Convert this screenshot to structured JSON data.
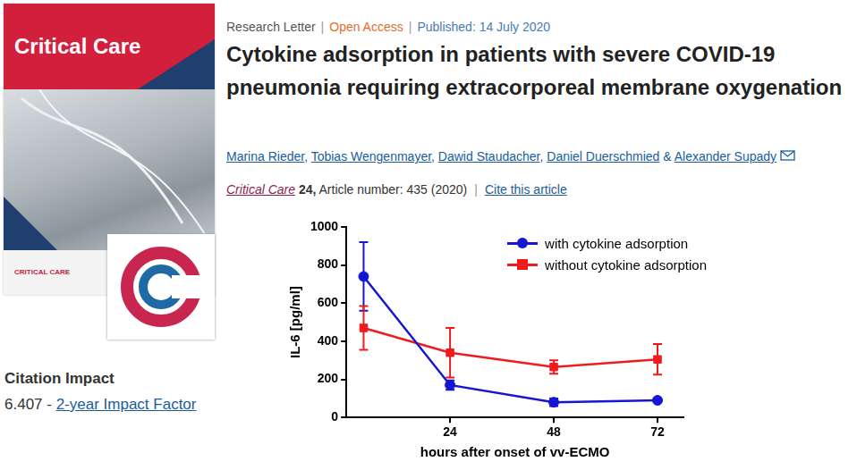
{
  "cover": {
    "title": "Critical Care",
    "footer": "CRITICAL CARE"
  },
  "article": {
    "type_label": "Research Letter",
    "access": "Open Access",
    "published": "Published: 14 July 2020",
    "separator": "|",
    "title": "Cytokine adsorption in patients with severe COVID-19 pneumonia requiring extracorporeal membrane oxygenation",
    "authors": [
      "Marina Rieder",
      "Tobias Wengenmayer",
      "Dawid Staudacher",
      "Daniel Duerschmied",
      "Alexander Supady"
    ],
    "author_separator": ", ",
    "last_author_separator": " & ",
    "journal": "Critical Care",
    "volume": "24,",
    "article_number": "Article number: 435 (2020)",
    "cite": "Cite this article"
  },
  "citation_impact": {
    "heading": "Citation Impact",
    "value": "6.407",
    "separator": " - ",
    "label": "2-year Impact Factor"
  },
  "chart_data": {
    "type": "line",
    "x_label": "hours after onset of vv-ECMO",
    "y_label": "IL-6 [pg/ml]",
    "x": [
      4,
      24,
      48,
      72
    ],
    "series": [
      {
        "name": "with cytokine adsorption",
        "color": "#1616d2",
        "marker": "circle",
        "values": [
          740,
          170,
          80,
          90
        ],
        "errors": [
          180,
          25,
          20,
          8
        ]
      },
      {
        "name": "without cytokine adsorption",
        "color": "#ee1c1c",
        "marker": "square",
        "values": [
          470,
          340,
          265,
          305
        ],
        "errors": [
          115,
          130,
          35,
          80
        ]
      }
    ],
    "xlim": [
      0,
      78
    ],
    "xticks": [
      24,
      48,
      72
    ],
    "ylim": [
      0,
      1000
    ],
    "yticks": [
      0,
      200,
      400,
      600,
      800,
      1000
    ],
    "grid": false,
    "legend": "upper right"
  }
}
